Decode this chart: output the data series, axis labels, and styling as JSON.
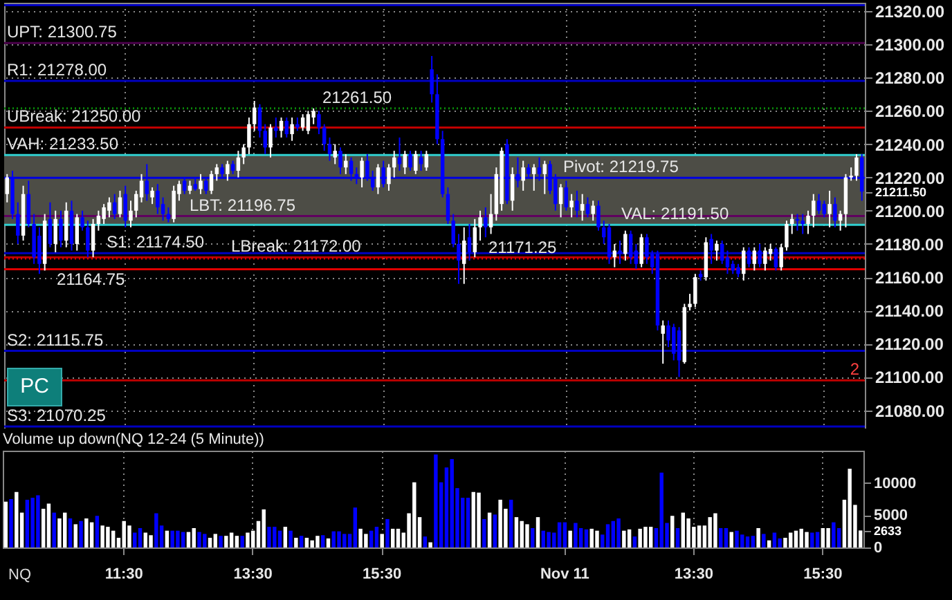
{
  "chart_data": [
    {
      "type": "candlestick",
      "categories": [
        null,
        null,
        null,
        null,
        null,
        null,
        null,
        null,
        null,
        null,
        null,
        null,
        null,
        null,
        null,
        null,
        null,
        null,
        null,
        null,
        null,
        null,
        "11:30",
        null,
        null,
        null,
        null,
        null,
        null,
        null,
        null,
        null,
        null,
        null,
        null,
        null,
        null,
        null,
        null,
        null,
        null,
        null,
        null,
        null,
        null,
        null,
        "13:30",
        null,
        null,
        null,
        null,
        null,
        null,
        null,
        null,
        null,
        null,
        null,
        null,
        null,
        null,
        null,
        null,
        null,
        null,
        null,
        null,
        null,
        null,
        null,
        "15:30",
        null,
        null,
        null,
        null,
        null,
        null,
        null,
        null,
        null,
        null,
        null,
        null,
        null,
        null,
        null,
        null,
        null,
        null,
        null,
        null,
        null,
        null,
        null,
        null,
        null,
        null,
        null,
        null,
        null,
        null,
        null,
        null,
        null,
        "Nov 11",
        null,
        null,
        null,
        null,
        null,
        null,
        null,
        null,
        null,
        null,
        null,
        null,
        null,
        null,
        null,
        null,
        null,
        null,
        null,
        null,
        null,
        null,
        null,
        "13:30",
        null,
        null,
        null,
        null,
        null,
        null,
        null,
        null,
        null,
        null,
        null,
        null,
        null,
        null,
        null,
        null,
        null,
        null,
        null,
        null,
        null,
        null,
        null,
        "15:30",
        null,
        null,
        null,
        null,
        null,
        null,
        null
      ],
      "ohlc": [
        [
          21210,
          21222,
          21205,
          21220
        ],
        [
          21220,
          21224,
          21195,
          21198
        ],
        [
          21198,
          21205,
          21180,
          21185
        ],
        [
          21185,
          21215,
          21182,
          21210
        ],
        [
          21210,
          21218,
          21190,
          21192
        ],
        [
          21192,
          21198,
          21168,
          21172
        ],
        [
          21185,
          21190,
          21162,
          21168
        ],
        [
          21168,
          21198,
          21164,
          21194
        ],
        [
          21195,
          21205,
          21178,
          21180
        ],
        [
          21180,
          21200,
          21175,
          21195
        ],
        [
          21195,
          21200,
          21178,
          21182
        ],
        [
          21182,
          21205,
          21178,
          21200
        ],
        [
          21200,
          21206,
          21176,
          21180
        ],
        [
          21180,
          21198,
          21176,
          21196
        ],
        [
          21196,
          21200,
          21188,
          21190
        ],
        [
          21190,
          21194,
          21172,
          21176
        ],
        [
          21176,
          21195,
          21172,
          21192
        ],
        [
          21192,
          21200,
          21188,
          21197
        ],
        [
          21195,
          21204,
          21192,
          21202
        ],
        [
          21200,
          21208,
          21196,
          21205
        ],
        [
          21205,
          21210,
          21195,
          21198
        ],
        [
          21198,
          21212,
          21196,
          21208
        ],
        [
          21210,
          21215,
          21190,
          21194
        ],
        [
          21194,
          21206,
          21190,
          21200
        ],
        [
          21200,
          21212,
          21196,
          21210
        ],
        [
          21208,
          21222,
          21205,
          21218
        ],
        [
          21218,
          21228,
          21206,
          21210
        ],
        [
          21208,
          21214,
          21204,
          21212
        ],
        [
          21212,
          21216,
          21198,
          21202
        ],
        [
          21204,
          21208,
          21194,
          21198
        ],
        [
          21198,
          21202,
          21193,
          21195
        ],
        [
          21195,
          21215,
          21193,
          21212
        ],
        [
          21210,
          21218,
          21206,
          21216
        ],
        [
          21218,
          21220,
          21210,
          21212
        ],
        [
          21212,
          21218,
          21210,
          21215
        ],
        [
          21216,
          21220,
          21212,
          21213
        ],
        [
          21213,
          21222,
          21210,
          21218
        ],
        [
          21218,
          21220,
          21210,
          21212
        ],
        [
          21212,
          21224,
          21210,
          21222
        ],
        [
          21222,
          21228,
          21218,
          21226
        ],
        [
          21226,
          21228,
          21220,
          21222
        ],
        [
          21222,
          21230,
          21218,
          21228
        ],
        [
          21228,
          21230,
          21222,
          21224
        ],
        [
          21224,
          21236,
          21220,
          21232
        ],
        [
          21232,
          21240,
          21228,
          21238
        ],
        [
          21238,
          21256,
          21234,
          21252
        ],
        [
          21252,
          21266,
          21248,
          21262
        ],
        [
          21262,
          21264,
          21244,
          21248
        ],
        [
          21248,
          21252,
          21234,
          21238
        ],
        [
          21238,
          21252,
          21232,
          21250
        ],
        [
          21250,
          21256,
          21244,
          21248
        ],
        [
          21248,
          21256,
          21244,
          21254
        ],
        [
          21254,
          21256,
          21244,
          21246
        ],
        [
          21246,
          21256,
          21242,
          21252
        ],
        [
          21252,
          21256,
          21248,
          21250
        ],
        [
          21250,
          21258,
          21248,
          21256
        ],
        [
          21248,
          21260,
          21246,
          21258
        ],
        [
          21256,
          21261.5,
          21252,
          21260
        ],
        [
          21258,
          21260,
          21246,
          21250
        ],
        [
          21250,
          21252,
          21236,
          21240
        ],
        [
          21240,
          21244,
          21230,
          21234
        ],
        [
          21232,
          21240,
          21228,
          21236
        ],
        [
          21236,
          21238,
          21222,
          21226
        ],
        [
          21226,
          21234,
          21222,
          21230
        ],
        [
          21230,
          21232,
          21218,
          21222
        ],
        [
          21222,
          21226,
          21216,
          21220
        ],
        [
          21220,
          21232,
          21214,
          21230
        ],
        [
          21230,
          21234,
          21218,
          21220
        ],
        [
          21220,
          21224,
          21212,
          21214
        ],
        [
          21214,
          21228,
          21210,
          21226
        ],
        [
          21226,
          21230,
          21214,
          21216
        ],
        [
          21216,
          21228,
          21212,
          21226
        ],
        [
          21226,
          21236,
          21220,
          21232
        ],
        [
          21232,
          21244,
          21224,
          21228
        ],
        [
          21226,
          21236,
          21222,
          21234
        ],
        [
          21234,
          21236,
          21224,
          21226
        ],
        [
          21224,
          21236,
          21222,
          21234
        ],
        [
          21232,
          21236,
          21224,
          21228
        ],
        [
          21226,
          21236,
          21224,
          21234
        ],
        [
          21285,
          21293,
          21265,
          21270
        ],
        [
          21270,
          21282,
          21240,
          21243
        ],
        [
          21243,
          21248,
          21208,
          21210
        ],
        [
          21210,
          21214,
          21192,
          21194
        ],
        [
          21194,
          21198,
          21178,
          21180
        ],
        [
          21180,
          21186,
          21156,
          21170
        ],
        [
          21168,
          21190,
          21156,
          21182
        ],
        [
          21184,
          21192,
          21170,
          21175
        ],
        [
          21175,
          21195,
          21172,
          21190
        ],
        [
          21190,
          21200,
          21182,
          21196
        ],
        [
          21196,
          21202,
          21184,
          21190
        ],
        [
          21190,
          21210,
          21186,
          21198
        ],
        [
          21198,
          21226,
          21194,
          21222
        ],
        [
          21204,
          21238,
          21200,
          21236
        ],
        [
          21240,
          21243,
          21204,
          21206
        ],
        [
          21206,
          21226,
          21200,
          21222
        ],
        [
          21222,
          21232,
          21214,
          21218
        ],
        [
          21218,
          21230,
          21212,
          21226
        ],
        [
          21226,
          21228,
          21220,
          21222
        ],
        [
          21222,
          21228,
          21212,
          21226
        ],
        [
          21226,
          21232,
          21218,
          21222
        ],
        [
          21222,
          21230,
          21210,
          21228
        ],
        [
          21228,
          21230,
          21210,
          21212
        ],
        [
          21220,
          21222,
          21200,
          21204
        ],
        [
          21204,
          21216,
          21196,
          21214
        ],
        [
          21214,
          21218,
          21200,
          21202
        ],
        [
          21202,
          21210,
          21196,
          21206
        ],
        [
          21206,
          21212,
          21196,
          21200
        ],
        [
          21200,
          21210,
          21194,
          21204
        ],
        [
          21204,
          21208,
          21196,
          21198
        ],
        [
          21198,
          21206,
          21194,
          21203
        ],
        [
          21203,
          21206,
          21188,
          21190
        ],
        [
          21190,
          21194,
          21180,
          21184
        ],
        [
          21190,
          21192,
          21168,
          21172
        ],
        [
          21172,
          21180,
          21166,
          21176
        ],
        [
          21176,
          21182,
          21168,
          21174
        ],
        [
          21174,
          21188,
          21170,
          21186
        ],
        [
          21186,
          21188,
          21168,
          21172
        ],
        [
          21176,
          21180,
          21165,
          21168
        ],
        [
          21168,
          21186,
          21166,
          21184
        ],
        [
          21184,
          21186,
          21168,
          21172
        ],
        [
          21174,
          21176,
          21162,
          21166
        ],
        [
          21174,
          21176,
          21128,
          21131
        ],
        [
          21126,
          21134,
          21108,
          21131
        ],
        [
          21131,
          21134,
          21118,
          21122
        ],
        [
          21130,
          21132,
          21110,
          21114
        ],
        [
          21128,
          21130,
          21100,
          21110
        ],
        [
          21109,
          21144,
          21108,
          21142
        ],
        [
          21142,
          21150,
          21140,
          21144
        ],
        [
          21144,
          21162,
          21142,
          21160
        ],
        [
          21162,
          21164,
          21158,
          21160
        ],
        [
          21160,
          21184,
          21158,
          21181
        ],
        [
          21183,
          21186,
          21168,
          21176
        ],
        [
          21176,
          21182,
          21170,
          21180
        ],
        [
          21180,
          21182,
          21168,
          21170
        ],
        [
          21172,
          21176,
          21162,
          21166
        ],
        [
          21168,
          21170,
          21162,
          21164
        ],
        [
          21166,
          21168,
          21160,
          21162
        ],
        [
          21162,
          21178,
          21158,
          21176
        ],
        [
          21176,
          21178,
          21166,
          21168
        ],
        [
          21168,
          21178,
          21164,
          21176
        ],
        [
          21176,
          21180,
          21166,
          21168
        ],
        [
          21168,
          21178,
          21164,
          21176
        ],
        [
          21174,
          21180,
          21170,
          21177
        ],
        [
          21177,
          21178,
          21164,
          21166
        ],
        [
          21166,
          21180,
          21164,
          21178
        ],
        [
          21178,
          21194,
          21176,
          21192
        ],
        [
          21192,
          21198,
          21186,
          21195
        ],
        [
          21195,
          21198,
          21188,
          21194
        ],
        [
          21194,
          21198,
          21186,
          21192
        ],
        [
          21192,
          21200,
          21186,
          21197
        ],
        [
          21197,
          21210,
          21190,
          21206
        ],
        [
          21206,
          21210,
          21198,
          21200
        ],
        [
          21204,
          21206,
          21196,
          21198
        ],
        [
          21198,
          21212,
          21190,
          21204
        ],
        [
          21204,
          21208,
          21190,
          21194
        ],
        [
          21194,
          21200,
          21188,
          21198
        ],
        [
          21198,
          21222,
          21190,
          21220
        ],
        [
          21220,
          21226,
          21218,
          21221
        ],
        [
          21221,
          21234,
          21218,
          21232
        ],
        [
          21232,
          21234,
          21206,
          21211.5
        ]
      ],
      "colors": [
        "#ffffff",
        "#0000ff",
        "#0000ff",
        "#ffffff",
        "#0000ff",
        "#0000ff",
        "#0000ff",
        "#ffffff",
        "#0000ff",
        "#ffffff",
        "#0000ff",
        "#ffffff",
        "#0000ff",
        "#ffffff",
        "#0000ff",
        "#0000ff",
        "#ffffff",
        "#ffffff",
        "#ffffff",
        "#ffffff",
        "#0000ff",
        "#ffffff",
        "#0000ff",
        "#ffffff",
        "#ffffff",
        "#ffffff",
        "#0000ff",
        "#ffffff",
        "#0000ff",
        "#0000ff",
        "#0000ff",
        "#ffffff",
        "#ffffff",
        "#0000ff",
        "#ffffff",
        "#0000ff",
        "#ffffff",
        "#0000ff",
        "#ffffff",
        "#ffffff",
        "#0000ff",
        "#ffffff",
        "#0000ff",
        "#ffffff",
        "#ffffff",
        "#ffffff",
        "#ffffff",
        "#0000ff",
        "#0000ff",
        "#ffffff",
        "#0000ff",
        "#ffffff",
        "#0000ff",
        "#ffffff",
        "#0000ff",
        "#ffffff",
        "#ffffff",
        "#ffffff",
        "#0000ff",
        "#0000ff",
        "#0000ff",
        "#ffffff",
        "#0000ff",
        "#ffffff",
        "#0000ff",
        "#0000ff",
        "#ffffff",
        "#0000ff",
        "#0000ff",
        "#ffffff",
        "#0000ff",
        "#ffffff",
        "#ffffff",
        "#0000ff",
        "#ffffff",
        "#0000ff",
        "#ffffff",
        "#0000ff",
        "#ffffff",
        "#0000ff",
        "#0000ff",
        "#0000ff",
        "#0000ff",
        "#0000ff",
        "#0000ff",
        "#ffffff",
        "#0000ff",
        "#ffffff",
        "#ffffff",
        "#0000ff",
        "#ffffff",
        "#ffffff",
        "#ffffff",
        "#0000ff",
        "#ffffff",
        "#0000ff",
        "#ffffff",
        "#0000ff",
        "#ffffff",
        "#0000ff",
        "#ffffff",
        "#0000ff",
        "#0000ff",
        "#ffffff",
        "#0000ff",
        "#ffffff",
        "#0000ff",
        "#ffffff",
        "#0000ff",
        "#ffffff",
        "#0000ff",
        "#0000ff",
        "#0000ff",
        "#ffffff",
        "#0000ff",
        "#ffffff",
        "#0000ff",
        "#0000ff",
        "#ffffff",
        "#0000ff",
        "#0000ff",
        "#0000ff",
        "#ffffff",
        "#0000ff",
        "#0000ff",
        "#0000ff",
        "#ffffff",
        "#ffffff",
        "#ffffff",
        "#0000ff",
        "#ffffff",
        "#0000ff",
        "#ffffff",
        "#0000ff",
        "#0000ff",
        "#0000ff",
        "#0000ff",
        "#ffffff",
        "#0000ff",
        "#ffffff",
        "#0000ff",
        "#ffffff",
        "#ffffff",
        "#0000ff",
        "#ffffff",
        "#ffffff",
        "#ffffff",
        "#0000ff",
        "#0000ff",
        "#ffffff",
        "#ffffff",
        "#0000ff",
        "#0000ff",
        "#ffffff",
        "#0000ff",
        "#ffffff",
        "#ffffff",
        "#ffffff",
        "#ffffff",
        "#0000ff"
      ],
      "ylim": [
        21069,
        21325
      ],
      "yticks": [
        {
          "value": 21080,
          "label": "21080.00"
        },
        {
          "value": 21100,
          "label": "21100.00"
        },
        {
          "value": 21120,
          "label": "21120.00"
        },
        {
          "value": 21140,
          "label": "21140.00"
        },
        {
          "value": 21160,
          "label": "21160.00"
        },
        {
          "value": 21180,
          "label": "21180.00"
        },
        {
          "value": 21200,
          "label": "21200.00"
        },
        {
          "value": 21220,
          "label": "21220.00"
        },
        {
          "value": 21240,
          "label": "21240.00"
        },
        {
          "value": 21260,
          "label": "21260.00"
        },
        {
          "value": 21280,
          "label": "21280.00"
        },
        {
          "value": 21300,
          "label": "21300.00"
        },
        {
          "value": 21320,
          "label": "21320.00"
        },
        {
          "value": 21211.5,
          "label": "21211.50"
        }
      ],
      "tick_labels": "y",
      "grid": true,
      "bands": [
        {
          "axis": "y",
          "from": 21191.5,
          "to": 21233.5,
          "color": "#4d4d46"
        }
      ],
      "ref_lines": [
        {
          "axis": "y",
          "value": 21323.5,
          "color": "#0000c0"
        },
        {
          "axis": "y",
          "value": 21300.75,
          "label": "UPT: 21300.75",
          "color": "#4b004b"
        },
        {
          "axis": "y",
          "value": 21278,
          "label": "R1: 21278.00",
          "color": "#0000c0"
        },
        {
          "axis": "y",
          "value": 21250,
          "label": "UBreak: 21250.00",
          "color": "#c00000"
        },
        {
          "axis": "y",
          "value": 21233.5,
          "label": "VAH: 21233.50",
          "color": "#30d0d0"
        },
        {
          "axis": "y",
          "value": 21219.75,
          "label": "Pivot: 21219.75",
          "color": "#0000e0"
        },
        {
          "axis": "y",
          "value": 21196.75,
          "label": "LBT: 21196.75",
          "color": "#600060"
        },
        {
          "axis": "y",
          "value": 21191.5,
          "label": "VAL: 21191.50",
          "color": "#30d0d0"
        },
        {
          "axis": "y",
          "value": 21174.5,
          "label": "S1: 21174.50",
          "color": "#0000c0"
        },
        {
          "axis": "y",
          "value": 21172,
          "label": "LBreak: 21172.00",
          "color": "#c00000"
        },
        {
          "axis": "y",
          "value": 21115.75,
          "label": "S2: 21115.75",
          "color": "#0000c0"
        },
        {
          "axis": "y",
          "value": 21070.25,
          "label": "S3: 21070.25",
          "color": "#0000c0"
        },
        {
          "axis": "y",
          "value": 21261.5,
          "label": "21261.50",
          "color": "#0a8a0a",
          "line_style": "dotted"
        },
        {
          "axis": "y",
          "value": 21171.25,
          "label": "21171.25",
          "color": "#e00000",
          "line_style": "dotted"
        },
        {
          "axis": "y",
          "value": 21164.75,
          "label": "21164.75",
          "color": "#e00000"
        },
        {
          "axis": "y",
          "value": 21098,
          "color": "#c00000"
        }
      ],
      "annotations": [
        "PC",
        {
          "text": "2",
          "y": 21098
        }
      ]
    },
    {
      "type": "bar",
      "title": "Volume up down(NQ 12-24 (5 Minute))",
      "categories": [
        null,
        null,
        null,
        null,
        null,
        null,
        null,
        null,
        null,
        null,
        null,
        null,
        null,
        null,
        null,
        null,
        null,
        null,
        null,
        null,
        null,
        null,
        "11:30",
        null,
        null,
        null,
        null,
        null,
        null,
        null,
        null,
        null,
        null,
        null,
        null,
        null,
        null,
        null,
        null,
        null,
        null,
        null,
        null,
        null,
        null,
        null,
        "13:30",
        null,
        null,
        null,
        null,
        null,
        null,
        null,
        null,
        null,
        null,
        null,
        null,
        null,
        null,
        null,
        null,
        null,
        null,
        null,
        null,
        null,
        null,
        null,
        "15:30",
        null,
        null,
        null,
        null,
        null,
        null,
        null,
        null,
        null,
        null,
        null,
        null,
        null,
        null,
        null,
        null,
        null,
        null,
        null,
        null,
        null,
        null,
        null,
        null,
        null,
        null,
        null,
        null,
        null,
        null,
        null,
        null,
        null,
        "Nov 11",
        null,
        null,
        null,
        null,
        null,
        null,
        null,
        null,
        null,
        null,
        null,
        null,
        null,
        null,
        null,
        null,
        null,
        null,
        null,
        null,
        null,
        null,
        null,
        "13:30",
        null,
        null,
        null,
        null,
        null,
        null,
        null,
        null,
        null,
        null,
        null,
        null,
        null,
        null,
        null,
        null,
        null,
        null,
        null,
        null,
        null,
        null,
        null,
        "15:30",
        null,
        null,
        null,
        null,
        null,
        null,
        null
      ],
      "values": [
        7100,
        7500,
        8600,
        5400,
        7400,
        7700,
        8100,
        6000,
        6800,
        5400,
        4500,
        5400,
        4500,
        3600,
        4100,
        4500,
        3900,
        4900,
        3400,
        3200,
        2600,
        1500,
        4100,
        3400,
        2300,
        3000,
        2300,
        1900,
        5300,
        3400,
        2600,
        2600,
        2600,
        2400,
        2400,
        3000,
        2400,
        2100,
        1500,
        2100,
        1800,
        1800,
        2300,
        1800,
        1800,
        2300,
        2600,
        4100,
        5900,
        3200,
        3200,
        2600,
        3200,
        2600,
        1500,
        1800,
        1500,
        1100,
        1800,
        1900,
        1400,
        2500,
        2500,
        2100,
        2100,
        6200,
        2900,
        2100,
        2600,
        3200,
        2100,
        4400,
        2900,
        2900,
        2300,
        5300,
        10100,
        4700,
        1700,
        800,
        14400,
        10100,
        12400,
        13700,
        9200,
        7700,
        7700,
        8600,
        8500,
        4400,
        5400,
        5100,
        7400,
        6000,
        7400,
        4700,
        4100,
        3600,
        3000,
        4700,
        2600,
        2400,
        2300,
        3900,
        3900,
        2600,
        3800,
        3000,
        2800,
        2900,
        2600,
        2000,
        3600,
        4100,
        4500,
        2600,
        2800,
        1700,
        2900,
        3200,
        3200,
        3000,
        11600,
        3800,
        4900,
        3000,
        5400,
        4500,
        3200,
        3400,
        3400,
        4700,
        5300,
        3000,
        3000,
        2400,
        2600,
        2000,
        1700,
        1800,
        3000,
        2100,
        1100,
        2300,
        1400,
        1500,
        2300,
        2600,
        2900,
        2400,
        2300,
        2400,
        3000,
        3000,
        3900,
        3000,
        7400,
        12200,
        6600,
        2633
      ],
      "colors": [
        "#ffffff",
        "#0000ff",
        "#ffffff",
        "#ffffff",
        "#0000ff",
        "#0000ff",
        "#0000ff",
        "#ffffff",
        "#ffffff",
        "#0000ff",
        "#ffffff",
        "#ffffff",
        "#0000ff",
        "#ffffff",
        "#0000ff",
        "#ffffff",
        "#ffffff",
        "#0000ff",
        "#ffffff",
        "#ffffff",
        "#ffffff",
        "#ffffff",
        "#ffffff",
        "#ffffff",
        "#0000ff",
        "#0000ff",
        "#ffffff",
        "#ffffff",
        "#0000ff",
        "#0000ff",
        "#ffffff",
        "#0000ff",
        "#0000ff",
        "#0000ff",
        "#ffffff",
        "#ffffff",
        "#0000ff",
        "#0000ff",
        "#ffffff",
        "#ffffff",
        "#0000ff",
        "#ffffff",
        "#ffffff",
        "#ffffff",
        "#0000ff",
        "#ffffff",
        "#ffffff",
        "#ffffff",
        "#ffffff",
        "#0000ff",
        "#0000ff",
        "#0000ff",
        "#ffffff",
        "#0000ff",
        "#ffffff",
        "#0000ff",
        "#ffffff",
        "#ffffff",
        "#ffffff",
        "#0000ff",
        "#ffffff",
        "#0000ff",
        "#0000ff",
        "#0000ff",
        "#0000ff",
        "#0000ff",
        "#ffffff",
        "#ffffff",
        "#0000ff",
        "#0000ff",
        "#ffffff",
        "#0000ff",
        "#ffffff",
        "#ffffff",
        "#ffffff",
        "#ffffff",
        "#ffffff",
        "#ffffff",
        "#0000ff",
        "#ffffff",
        "#0000ff",
        "#0000ff",
        "#0000ff",
        "#0000ff",
        "#0000ff",
        "#0000ff",
        "#0000ff",
        "#ffffff",
        "#ffffff",
        "#0000ff",
        "#ffffff",
        "#0000ff",
        "#ffffff",
        "#ffffff",
        "#0000ff",
        "#ffffff",
        "#ffffff",
        "#ffffff",
        "#0000ff",
        "#ffffff",
        "#0000ff",
        "#0000ff",
        "#0000ff",
        "#0000ff",
        "#0000ff",
        "#ffffff",
        "#0000ff",
        "#0000ff",
        "#0000ff",
        "#ffffff",
        "#ffffff",
        "#0000ff",
        "#0000ff",
        "#0000ff",
        "#0000ff",
        "#ffffff",
        "#ffffff",
        "#0000ff",
        "#ffffff",
        "#ffffff",
        "#ffffff",
        "#0000ff",
        "#0000ff",
        "#0000ff",
        "#ffffff",
        "#0000ff",
        "#ffffff",
        "#ffffff",
        "#ffffff",
        "#ffffff",
        "#ffffff",
        "#ffffff",
        "#ffffff",
        "#0000ff",
        "#0000ff",
        "#ffffff",
        "#0000ff",
        "#0000ff",
        "#0000ff",
        "#0000ff",
        "#ffffff",
        "#0000ff",
        "#ffffff",
        "#0000ff",
        "#0000ff",
        "#ffffff",
        "#ffffff",
        "#ffffff",
        "#ffffff",
        "#ffffff",
        "#0000ff",
        "#0000ff",
        "#ffffff",
        "#ffffff",
        "#0000ff",
        "#0000ff",
        "#ffffff",
        "#ffffff",
        "#ffffff",
        "#ffffff"
      ],
      "ylim": [
        0,
        15000
      ],
      "yticks": [
        0,
        5000,
        10000,
        2633
      ],
      "grid": "x",
      "annotations": [
        "NQ"
      ]
    }
  ]
}
